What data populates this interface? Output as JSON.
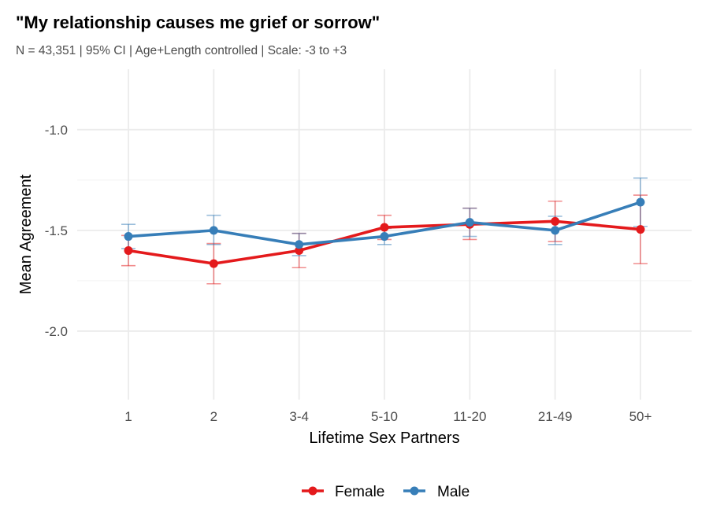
{
  "chart_data": {
    "type": "line",
    "title": "\"My relationship causes me grief or sorrow\"",
    "subtitle": "N = 43,351 | 95% CI | Age+Length controlled | Scale: -3 to +3",
    "xlabel": "Lifetime Sex Partners",
    "ylabel": "Mean Agreement",
    "categories": [
      "1",
      "2",
      "3-4",
      "5-10",
      "11-20",
      "21-49",
      "50+"
    ],
    "ylim": [
      -2.34,
      -0.7
    ],
    "yticks": [
      -1.0,
      -1.5,
      -2.0
    ],
    "ytick_labels": [
      "-1.0",
      "-1.5",
      "-2.0"
    ],
    "grid": true,
    "legend_position": "bottom",
    "series": [
      {
        "name": "Female",
        "color": "#E41A1C",
        "values": [
          -1.6,
          -1.665,
          -1.6,
          -1.485,
          -1.47,
          -1.455,
          -1.495
        ],
        "ci_low": [
          -1.675,
          -1.765,
          -1.685,
          -1.545,
          -1.545,
          -1.555,
          -1.665
        ],
        "ci_high": [
          -1.525,
          -1.565,
          -1.515,
          -1.425,
          -1.39,
          -1.355,
          -1.325
        ]
      },
      {
        "name": "Male",
        "color": "#377EB8",
        "values": [
          -1.53,
          -1.5,
          -1.57,
          -1.53,
          -1.46,
          -1.5,
          -1.36
        ],
        "ci_low": [
          -1.59,
          -1.57,
          -1.625,
          -1.57,
          -1.53,
          -1.57,
          -1.48
        ],
        "ci_high": [
          -1.47,
          -1.425,
          -1.515,
          -1.49,
          -1.39,
          -1.43,
          -1.24
        ]
      }
    ]
  }
}
